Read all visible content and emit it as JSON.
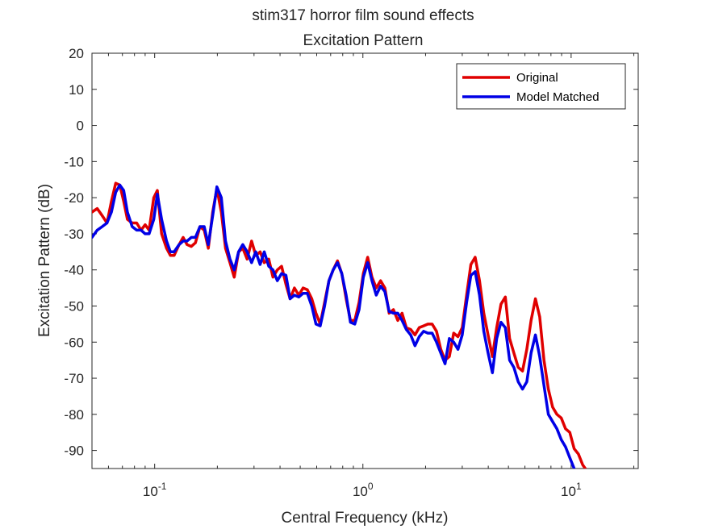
{
  "chart_data": {
    "type": "line",
    "title": "stim317 horror film sound effects",
    "subtitle": "Excitation Pattern",
    "xlabel": "Central Frequency (kHz)",
    "ylabel": "Excitation Pattern (dB)",
    "xscale": "log",
    "xlim": [
      0.05,
      21
    ],
    "ylim": [
      -95,
      20
    ],
    "xticks": [
      {
        "value": 0.1,
        "base": "10",
        "exp": "-1"
      },
      {
        "value": 1,
        "base": "10",
        "exp": "0"
      },
      {
        "value": 10,
        "base": "10",
        "exp": "1"
      }
    ],
    "yticks": [
      20,
      10,
      0,
      -10,
      -20,
      -30,
      -40,
      -50,
      -60,
      -70,
      -80,
      -90
    ],
    "grid": false,
    "legend_position": "top-right",
    "series": [
      {
        "name": "Original",
        "color": "#e00000",
        "points": [
          [
            0.05,
            -24
          ],
          [
            0.053,
            -23
          ],
          [
            0.056,
            -25
          ],
          [
            0.059,
            -27
          ],
          [
            0.062,
            -21
          ],
          [
            0.065,
            -16
          ],
          [
            0.068,
            -16.5
          ],
          [
            0.071,
            -21
          ],
          [
            0.074,
            -26
          ],
          [
            0.078,
            -27
          ],
          [
            0.082,
            -27
          ],
          [
            0.086,
            -29
          ],
          [
            0.09,
            -27.5
          ],
          [
            0.094,
            -29
          ],
          [
            0.099,
            -20
          ],
          [
            0.103,
            -18
          ],
          [
            0.108,
            -30
          ],
          [
            0.114,
            -34
          ],
          [
            0.119,
            -36
          ],
          [
            0.124,
            -36
          ],
          [
            0.131,
            -33
          ],
          [
            0.137,
            -31
          ],
          [
            0.143,
            -33
          ],
          [
            0.15,
            -33.5
          ],
          [
            0.157,
            -32.5
          ],
          [
            0.165,
            -28
          ],
          [
            0.173,
            -29
          ],
          [
            0.181,
            -34
          ],
          [
            0.19,
            -24
          ],
          [
            0.199,
            -17.5
          ],
          [
            0.209,
            -24
          ],
          [
            0.219,
            -34
          ],
          [
            0.23,
            -38
          ],
          [
            0.241,
            -42
          ],
          [
            0.253,
            -35
          ],
          [
            0.265,
            -34
          ],
          [
            0.278,
            -37
          ],
          [
            0.292,
            -32
          ],
          [
            0.306,
            -36
          ],
          [
            0.321,
            -35
          ],
          [
            0.336,
            -38
          ],
          [
            0.353,
            -37
          ],
          [
            0.37,
            -42
          ],
          [
            0.388,
            -40
          ],
          [
            0.407,
            -39
          ],
          [
            0.427,
            -44
          ],
          [
            0.447,
            -48
          ],
          [
            0.469,
            -45
          ],
          [
            0.492,
            -47
          ],
          [
            0.516,
            -45
          ],
          [
            0.541,
            -45.5
          ],
          [
            0.568,
            -48
          ],
          [
            0.595,
            -52
          ],
          [
            0.624,
            -55
          ],
          [
            0.655,
            -49
          ],
          [
            0.687,
            -43
          ],
          [
            0.72,
            -40
          ],
          [
            0.755,
            -37.5
          ],
          [
            0.792,
            -41
          ],
          [
            0.831,
            -48
          ],
          [
            0.871,
            -54
          ],
          [
            0.914,
            -54
          ],
          [
            0.958,
            -49
          ],
          [
            1.005,
            -41
          ],
          [
            1.054,
            -36.5
          ],
          [
            1.105,
            -42
          ],
          [
            1.159,
            -45
          ],
          [
            1.216,
            -43
          ],
          [
            1.275,
            -45
          ],
          [
            1.337,
            -52
          ],
          [
            1.402,
            -51
          ],
          [
            1.471,
            -54
          ],
          [
            1.542,
            -52
          ],
          [
            1.617,
            -56
          ],
          [
            1.696,
            -56.5
          ],
          [
            1.779,
            -58
          ],
          [
            1.865,
            -56
          ],
          [
            1.956,
            -55.5
          ],
          [
            2.051,
            -55
          ],
          [
            2.151,
            -55
          ],
          [
            2.256,
            -57
          ],
          [
            2.366,
            -62
          ],
          [
            2.481,
            -65
          ],
          [
            2.602,
            -64
          ],
          [
            2.729,
            -57.5
          ],
          [
            2.862,
            -58.5
          ],
          [
            3.001,
            -56
          ],
          [
            3.147,
            -47
          ],
          [
            3.301,
            -38.5
          ],
          [
            3.461,
            -36.5
          ],
          [
            3.63,
            -43
          ],
          [
            3.807,
            -52
          ],
          [
            3.993,
            -58
          ],
          [
            4.187,
            -64
          ],
          [
            4.391,
            -56
          ],
          [
            4.605,
            -49.5
          ],
          [
            4.829,
            -47.5
          ],
          [
            5.065,
            -59
          ],
          [
            5.311,
            -63
          ],
          [
            5.57,
            -67
          ],
          [
            5.841,
            -68
          ],
          [
            6.126,
            -62
          ],
          [
            6.424,
            -54
          ],
          [
            6.737,
            -48
          ],
          [
            7.065,
            -53
          ],
          [
            7.409,
            -65
          ],
          [
            7.77,
            -73
          ],
          [
            8.149,
            -78
          ],
          [
            8.546,
            -80
          ],
          [
            8.962,
            -81
          ],
          [
            9.399,
            -84
          ],
          [
            9.857,
            -85
          ],
          [
            10.337,
            -89.5
          ],
          [
            10.841,
            -91
          ],
          [
            11.37,
            -94
          ],
          [
            11.7,
            -95
          ]
        ]
      },
      {
        "name": "Model Matched",
        "color": "#0000e6",
        "points": [
          [
            0.05,
            -31
          ],
          [
            0.053,
            -29
          ],
          [
            0.056,
            -28
          ],
          [
            0.059,
            -27
          ],
          [
            0.062,
            -24
          ],
          [
            0.065,
            -18.5
          ],
          [
            0.068,
            -16.5
          ],
          [
            0.071,
            -18
          ],
          [
            0.074,
            -24
          ],
          [
            0.078,
            -28
          ],
          [
            0.082,
            -29
          ],
          [
            0.086,
            -29
          ],
          [
            0.09,
            -30
          ],
          [
            0.094,
            -30
          ],
          [
            0.099,
            -26
          ],
          [
            0.103,
            -19
          ],
          [
            0.108,
            -26
          ],
          [
            0.114,
            -32
          ],
          [
            0.119,
            -35
          ],
          [
            0.124,
            -35
          ],
          [
            0.131,
            -33
          ],
          [
            0.137,
            -32
          ],
          [
            0.143,
            -32
          ],
          [
            0.15,
            -31
          ],
          [
            0.157,
            -31
          ],
          [
            0.165,
            -28
          ],
          [
            0.173,
            -28
          ],
          [
            0.181,
            -33
          ],
          [
            0.19,
            -25
          ],
          [
            0.199,
            -17
          ],
          [
            0.209,
            -20
          ],
          [
            0.219,
            -32
          ],
          [
            0.23,
            -37
          ],
          [
            0.241,
            -40
          ],
          [
            0.253,
            -35
          ],
          [
            0.265,
            -33
          ],
          [
            0.278,
            -35
          ],
          [
            0.292,
            -38
          ],
          [
            0.306,
            -35
          ],
          [
            0.321,
            -38.5
          ],
          [
            0.336,
            -35
          ],
          [
            0.353,
            -39
          ],
          [
            0.37,
            -40
          ],
          [
            0.388,
            -43
          ],
          [
            0.407,
            -41
          ],
          [
            0.427,
            -41.5
          ],
          [
            0.447,
            -48
          ],
          [
            0.469,
            -47
          ],
          [
            0.492,
            -47.5
          ],
          [
            0.516,
            -46.5
          ],
          [
            0.541,
            -46.5
          ],
          [
            0.568,
            -50
          ],
          [
            0.595,
            -55
          ],
          [
            0.624,
            -55.5
          ],
          [
            0.655,
            -50
          ],
          [
            0.687,
            -43
          ],
          [
            0.72,
            -40
          ],
          [
            0.755,
            -38
          ],
          [
            0.792,
            -41
          ],
          [
            0.831,
            -47
          ],
          [
            0.871,
            -54.5
          ],
          [
            0.914,
            -55
          ],
          [
            0.958,
            -51
          ],
          [
            1.005,
            -42
          ],
          [
            1.054,
            -38
          ],
          [
            1.105,
            -43
          ],
          [
            1.159,
            -47
          ],
          [
            1.216,
            -44.5
          ],
          [
            1.275,
            -46
          ],
          [
            1.337,
            -51.5
          ],
          [
            1.402,
            -52
          ],
          [
            1.471,
            -52
          ],
          [
            1.542,
            -54
          ],
          [
            1.617,
            -56.5
          ],
          [
            1.696,
            -58
          ],
          [
            1.779,
            -61
          ],
          [
            1.865,
            -58.5
          ],
          [
            1.956,
            -57
          ],
          [
            2.051,
            -57.5
          ],
          [
            2.151,
            -57.5
          ],
          [
            2.256,
            -60
          ],
          [
            2.366,
            -63
          ],
          [
            2.481,
            -66
          ],
          [
            2.602,
            -59
          ],
          [
            2.729,
            -60
          ],
          [
            2.862,
            -62
          ],
          [
            3.001,
            -58
          ],
          [
            3.147,
            -49
          ],
          [
            3.301,
            -41.5
          ],
          [
            3.461,
            -40.5
          ],
          [
            3.63,
            -47
          ],
          [
            3.807,
            -57
          ],
          [
            3.993,
            -63
          ],
          [
            4.187,
            -68.5
          ],
          [
            4.391,
            -59
          ],
          [
            4.605,
            -54.5
          ],
          [
            4.829,
            -56
          ],
          [
            5.065,
            -65
          ],
          [
            5.311,
            -67
          ],
          [
            5.57,
            -71
          ],
          [
            5.841,
            -73
          ],
          [
            6.126,
            -71
          ],
          [
            6.424,
            -63
          ],
          [
            6.737,
            -58
          ],
          [
            7.065,
            -64
          ],
          [
            7.409,
            -72
          ],
          [
            7.77,
            -80
          ],
          [
            8.149,
            -82
          ],
          [
            8.546,
            -84
          ],
          [
            8.962,
            -87
          ],
          [
            9.399,
            -89
          ],
          [
            9.857,
            -92
          ],
          [
            10.337,
            -95
          ]
        ]
      }
    ]
  }
}
